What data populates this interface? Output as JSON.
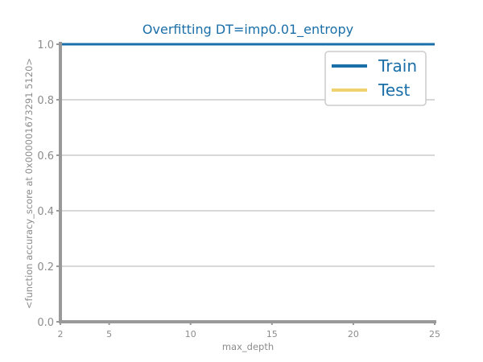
{
  "chart_data": {
    "type": "line",
    "title": "Overfitting DT=imp0.01_entropy",
    "xlabel": "max_depth",
    "ylabel": "<function accuracy_score at 0x000001673291 5120>",
    "xlim": [
      2,
      25
    ],
    "ylim": [
      0.0,
      1.0
    ],
    "x": [
      2,
      5,
      10,
      15,
      20,
      25
    ],
    "xticks": [
      2,
      5,
      10,
      15,
      20,
      25
    ],
    "yticks": [
      0.0,
      0.2,
      0.4,
      0.6,
      0.8,
      1.0
    ],
    "ytick_labels": [
      "0.0",
      "0.2",
      "0.4",
      "0.6",
      "0.8",
      "1.0"
    ],
    "grid": "horizontal",
    "legend_position": "top-right",
    "series": [
      {
        "name": "Train",
        "color": "#1a6fa8",
        "values": [
          1.0,
          1.0,
          1.0,
          1.0,
          1.0,
          1.0
        ]
      },
      {
        "name": "Test",
        "color": "#f0d270",
        "values": [
          1.0,
          1.0,
          1.0,
          1.0,
          1.0,
          1.0
        ]
      }
    ]
  }
}
